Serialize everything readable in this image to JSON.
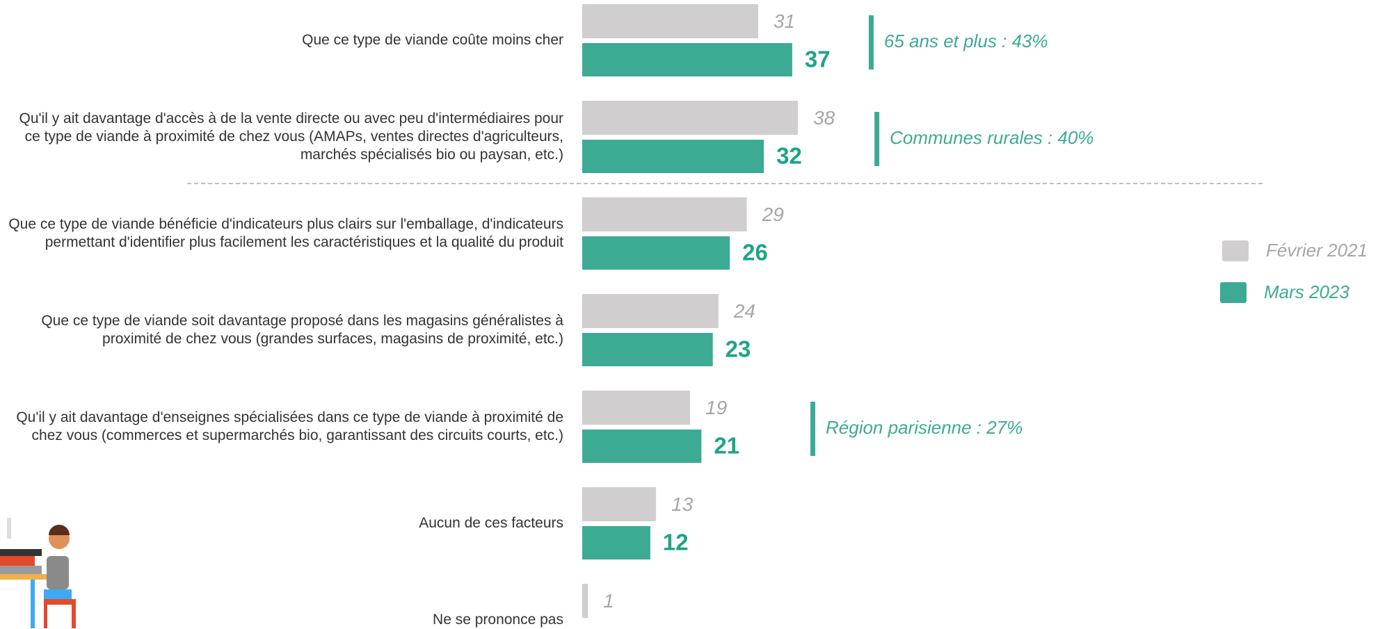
{
  "chart_data": {
    "type": "bar",
    "orientation": "horizontal",
    "categories": [
      "Que ce type de viande coûte moins cher",
      "Qu'il y ait davantage d'accès à de la vente directe ou avec peu d'intermédiaires pour ce type de viande à proximité de chez vous (AMAPs, ventes directes d'agriculteurs, marchés spécialisés bio ou paysan, etc.)",
      "Que ce type de viande bénéficie d'indicateurs plus clairs sur l'emballage, d'indicateurs permettant d'identifier plus facilement les caractéristiques et la qualité du produit",
      "Que ce type de viande soit davantage proposé dans les magasins généralistes à proximité de chez vous (grandes surfaces, magasins de proximité, etc.)",
      "Qu'il y ait davantage d'enseignes spécialisées dans ce type de viande à proximité de chez vous (commerces et supermarchés bio, garantissant des circuits courts, etc.)",
      "Aucun de ces facteurs",
      "Ne se prononce pas"
    ],
    "series": [
      {
        "name": "Février 2021",
        "color": "#d0cecf",
        "values": [
          31,
          38,
          29,
          24,
          19,
          13,
          1
        ]
      },
      {
        "name": "Mars 2023",
        "color": "#3dab94",
        "values": [
          37,
          32,
          26,
          23,
          21,
          12,
          null
        ]
      }
    ],
    "annotations": [
      "65 ans et plus : 43%",
      "Communes rurales : 40%",
      null,
      null,
      "Région parisienne : 27%",
      null,
      null
    ],
    "legend": "right"
  }
}
